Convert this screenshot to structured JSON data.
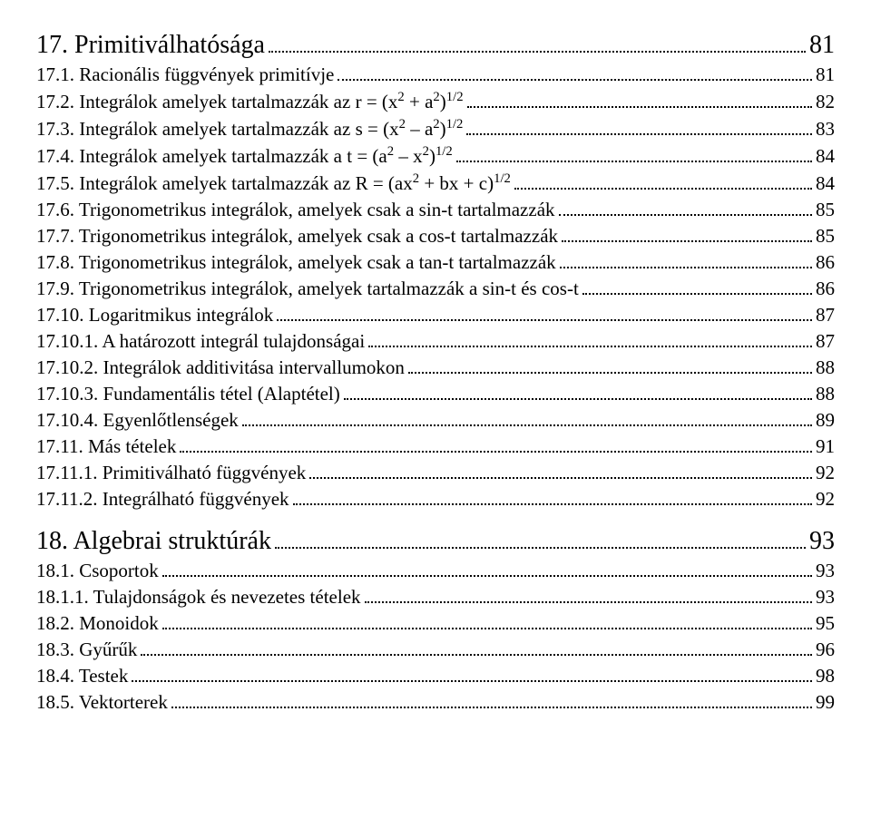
{
  "toc": [
    {
      "level": "h1",
      "num": "17.",
      "title": "Primitiválhatósága",
      "page": "81"
    },
    {
      "level": "h2",
      "num": "17.1.",
      "title": "Racionális függvények primitívje",
      "page": "81"
    },
    {
      "level": "h2",
      "num": "17.2.",
      "title_html": "Integrálok amelyek tartalmazzák az r = (x<span class='sup'>2</span> + a<span class='sup'>2</span>)<span class='sup'>1/2</span>",
      "page": "82"
    },
    {
      "level": "h2",
      "num": "17.3.",
      "title_html": "Integrálok amelyek tartalmazzák az s = (x<span class='sup'>2</span> – a<span class='sup'>2</span>)<span class='sup'>1/2</span>",
      "page": "83"
    },
    {
      "level": "h2",
      "num": "17.4.",
      "title_html": "Integrálok amelyek tartalmazzák a t = (a<span class='sup'>2</span> – x<span class='sup'>2</span>)<span class='sup'>1/2</span>",
      "page": "84"
    },
    {
      "level": "h2",
      "num": "17.5.",
      "title_html": "Integrálok amelyek tartalmazzák az R = (ax<span class='sup'>2</span> + bx + c)<span class='sup'>1/2</span>",
      "page": "84"
    },
    {
      "level": "h2",
      "num": "17.6.",
      "title": "Trigonometrikus integrálok, amelyek csak a sin-t tartalmazzák",
      "page": "85"
    },
    {
      "level": "h2",
      "num": "17.7.",
      "title": "Trigonometrikus integrálok, amelyek csak a cos-t tartalmazzák",
      "page": "85"
    },
    {
      "level": "h2",
      "num": "17.8.",
      "title": "Trigonometrikus integrálok, amelyek csak a tan-t tartalmazzák",
      "page": "86"
    },
    {
      "level": "h2",
      "num": "17.9.",
      "title": "Trigonometrikus integrálok, amelyek tartalmazzák a sin-t és cos-t",
      "page": "86"
    },
    {
      "level": "h2",
      "num": "17.10.",
      "title": "Logaritmikus integrálok",
      "page": "87"
    },
    {
      "level": "h3",
      "num": "17.10.1.",
      "title": "A határozott integrál tulajdonságai",
      "page": "87"
    },
    {
      "level": "h3",
      "num": "17.10.2.",
      "title": "Integrálok additivitása intervallumokon",
      "page": "88"
    },
    {
      "level": "h3",
      "num": "17.10.3.",
      "title": "Fundamentális tétel (Alaptétel)",
      "page": "88"
    },
    {
      "level": "h3",
      "num": "17.10.4.",
      "title": "Egyenlőtlenségek",
      "page": "89"
    },
    {
      "level": "h2",
      "num": "17.11.",
      "title": "Más tételek",
      "page": "91"
    },
    {
      "level": "h3",
      "num": "17.11.1.",
      "title": "Primitiválható függvények",
      "page": "92"
    },
    {
      "level": "h3",
      "num": "17.11.2.",
      "title": "Integrálható függvények",
      "page": "92"
    },
    {
      "gap": true
    },
    {
      "level": "h1",
      "num": "18.",
      "title": "Algebrai struktúrák",
      "page": "93"
    },
    {
      "level": "h2",
      "num": "18.1.",
      "title": "Csoportok",
      "page": "93"
    },
    {
      "level": "h3",
      "num": "18.1.1.",
      "title": "Tulajdonságok és nevezetes tételek",
      "page": "93"
    },
    {
      "level": "h2",
      "num": "18.2.",
      "title": "Monoidok",
      "page": "95"
    },
    {
      "level": "h2",
      "num": "18.3.",
      "title": "Gyűrűk",
      "page": "96"
    },
    {
      "level": "h2",
      "num": "18.4.",
      "title": "Testek",
      "page": "98"
    },
    {
      "level": "h2",
      "num": "18.5.",
      "title": "Vektorterek",
      "page": "99"
    }
  ]
}
